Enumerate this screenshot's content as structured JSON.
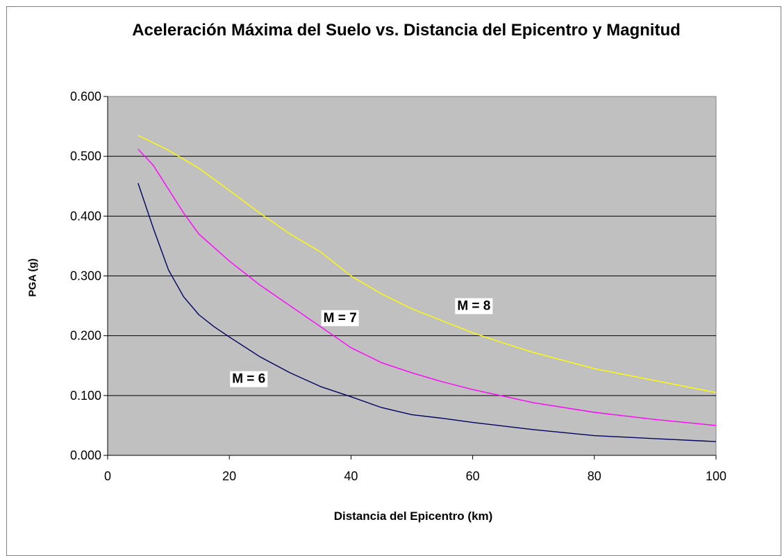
{
  "chart_data": {
    "type": "line",
    "title": "Aceleración Máxima del Suelo vs. Distancia del Epicentro y Magnitud",
    "xlabel": "Distancia del Epicentro (km)",
    "ylabel": "PGA (g)",
    "xlim": [
      0,
      100
    ],
    "ylim": [
      0,
      0.6
    ],
    "xticks": [
      "0",
      "20",
      "40",
      "60",
      "80",
      "100"
    ],
    "yticks": [
      "0.000",
      "0.100",
      "0.200",
      "0.300",
      "0.400",
      "0.500",
      "0.600"
    ],
    "grid": "horizontal",
    "legend": "none",
    "plot_background": "#c0c0c0",
    "series": [
      {
        "name": "M = 6",
        "color": "#000060",
        "x": [
          5,
          7.5,
          10,
          12.5,
          15,
          17.5,
          20,
          25,
          30,
          35,
          40,
          45,
          50,
          55,
          60,
          70,
          80,
          90,
          100
        ],
        "values": [
          0.455,
          0.38,
          0.31,
          0.265,
          0.235,
          0.215,
          0.198,
          0.165,
          0.138,
          0.115,
          0.098,
          0.08,
          0.068,
          0.062,
          0.055,
          0.043,
          0.033,
          0.028,
          0.023
        ]
      },
      {
        "name": "M = 7",
        "color": "#ff00ff",
        "x": [
          5,
          7.5,
          10,
          12.5,
          15,
          20,
          25,
          30,
          35,
          40,
          45,
          50,
          55,
          60,
          70,
          80,
          90,
          100
        ],
        "values": [
          0.512,
          0.485,
          0.445,
          0.405,
          0.37,
          0.325,
          0.285,
          0.25,
          0.215,
          0.18,
          0.155,
          0.138,
          0.123,
          0.11,
          0.088,
          0.072,
          0.06,
          0.05
        ]
      },
      {
        "name": "M = 8",
        "color": "#ffff00",
        "x": [
          5,
          10,
          15,
          20,
          25,
          30,
          35,
          40,
          45,
          50,
          55,
          60,
          65,
          70,
          80,
          90,
          100
        ],
        "values": [
          0.535,
          0.51,
          0.48,
          0.443,
          0.405,
          0.37,
          0.34,
          0.3,
          0.27,
          0.245,
          0.225,
          0.205,
          0.188,
          0.172,
          0.145,
          0.125,
          0.105
        ]
      }
    ],
    "annotations": [
      {
        "text": "M = 6",
        "x": 20,
        "y": 0.128
      },
      {
        "text": "M = 7",
        "x": 35,
        "y": 0.23
      },
      {
        "text": "M = 8",
        "x": 57,
        "y": 0.25
      }
    ]
  }
}
